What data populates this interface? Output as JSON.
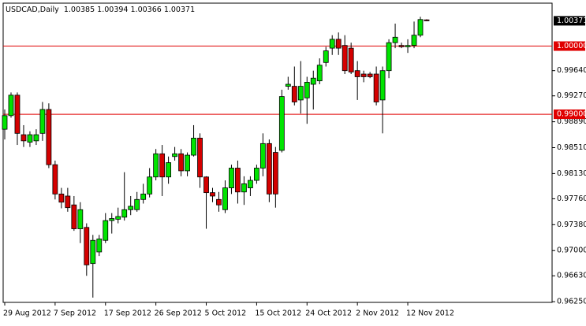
{
  "chart_data": {
    "type": "candlestick",
    "title": "USDCAD,Daily",
    "categories": [
      "29 Aug 2012",
      null,
      null,
      null,
      null,
      null,
      null,
      null,
      "7 Sep 2012",
      null,
      null,
      null,
      null,
      null,
      null,
      null,
      "17 Sep 2012",
      null,
      null,
      null,
      null,
      null,
      null,
      null,
      "26 Sep 2012",
      null,
      null,
      null,
      null,
      null,
      null,
      null,
      "5 Oct 2012",
      null,
      null,
      null,
      null,
      null,
      null,
      null,
      "15 Oct 2012",
      null,
      null,
      null,
      null,
      null,
      null,
      null,
      "24 Oct 2012",
      null,
      null,
      null,
      null,
      null,
      null,
      null,
      "2 Nov 2012",
      null,
      null,
      null,
      null,
      null,
      null,
      null,
      "12 Nov 2012",
      null,
      null,
      null
    ],
    "open": [
      0.9878,
      0.9898,
      0.9928,
      0.987,
      0.9859,
      0.9861,
      0.9872,
      0.9907,
      0.9826,
      0.9783,
      0.978,
      0.9767,
      0.9732,
      0.9734,
      0.9681,
      0.9698,
      0.9715,
      0.9744,
      0.9746,
      0.9749,
      0.976,
      0.976,
      0.9775,
      0.9783,
      0.9808,
      0.9842,
      0.9808,
      0.9838,
      0.9842,
      0.9817,
      0.984,
      0.9865,
      0.9808,
      0.9785,
      0.9775,
      0.976,
      0.9792,
      0.9821,
      0.9786,
      0.9792,
      0.9803,
      0.9821,
      0.9857,
      0.9844,
      0.9847,
      0.9941,
      0.9941,
      0.9921,
      0.9924,
      0.9944,
      0.9949,
      0.9976,
      0.9997,
      1.001,
      1.0001,
      0.9997,
      0.9964,
      0.9959,
      0.9959,
      0.9959,
      0.9921,
      0.9964,
      1.0005,
      1.0001,
      0.9999,
      1.0001,
      1.0016,
      1.00385
    ],
    "high": [
      0.9907,
      0.9932,
      0.9932,
      0.9884,
      0.9875,
      0.9878,
      0.9918,
      0.9916,
      0.9832,
      0.9792,
      0.9792,
      0.978,
      0.9771,
      0.974,
      0.9723,
      0.9723,
      0.9755,
      0.9755,
      0.9763,
      0.9815,
      0.978,
      0.9786,
      0.9798,
      0.9821,
      0.9849,
      0.9855,
      0.9838,
      0.9852,
      0.9849,
      0.9844,
      0.9884,
      0.9872,
      0.9809,
      0.9792,
      0.9786,
      0.9803,
      0.9826,
      0.9832,
      0.9809,
      0.9809,
      0.9826,
      0.9872,
      0.9863,
      0.9852,
      0.9936,
      0.9955,
      0.997,
      0.9978,
      0.9955,
      0.9964,
      0.9982,
      0.9999,
      1.0016,
      1.002,
      1.0016,
      1.0005,
      0.9978,
      0.9964,
      0.9962,
      0.997,
      0.997,
      1.001,
      1.0033,
      1.0005,
      1.001,
      1.0036,
      1.0043,
      1.00394
    ],
    "low": [
      0.9863,
      0.9895,
      0.9855,
      0.9852,
      0.9852,
      0.9855,
      0.9861,
      0.9821,
      0.9775,
      0.9762,
      0.9757,
      0.9729,
      0.9711,
      0.9663,
      0.9631,
      0.9692,
      0.9711,
      0.9725,
      0.974,
      0.9744,
      0.9752,
      0.9757,
      0.9769,
      0.9778,
      0.9803,
      0.978,
      0.9798,
      0.9832,
      0.9809,
      0.9809,
      0.9838,
      0.9792,
      0.9732,
      0.9771,
      0.9757,
      0.9755,
      0.9783,
      0.9769,
      0.9767,
      0.978,
      0.9798,
      0.9809,
      0.9771,
      0.9763,
      0.9844,
      0.9936,
      0.9913,
      0.9901,
      0.9886,
      0.9907,
      0.9944,
      0.997,
      0.9987,
      0.9987,
      0.9959,
      0.9959,
      0.9921,
      0.9947,
      0.9953,
      0.9913,
      0.9872,
      0.9953,
      0.9997,
      0.9997,
      0.999,
      0.9997,
      1.0013,
      1.00366
    ],
    "close": [
      0.9898,
      0.9928,
      0.9872,
      0.9861,
      0.987,
      0.987,
      0.9907,
      0.9826,
      0.9783,
      0.9771,
      0.9763,
      0.9732,
      0.976,
      0.9679,
      0.9715,
      0.9717,
      0.9744,
      0.9747,
      0.975,
      0.976,
      0.9765,
      0.9775,
      0.9783,
      0.9808,
      0.9842,
      0.9808,
      0.9829,
      0.9842,
      0.9817,
      0.984,
      0.9865,
      0.9808,
      0.9785,
      0.978,
      0.9767,
      0.9792,
      0.9821,
      0.9786,
      0.9798,
      0.9803,
      0.9821,
      0.9857,
      0.9783,
      0.9783,
      0.9926,
      0.9944,
      0.9918,
      0.9941,
      0.9947,
      0.9953,
      0.9972,
      0.9993,
      1.001,
      0.9997,
      0.9964,
      0.9962,
      0.9955,
      0.9955,
      0.9955,
      0.9918,
      0.9964,
      1.0005,
      1.0013,
      0.9999,
      1.0001,
      1.0016,
      1.0039,
      1.00371
    ],
    "up_color": "#00e400",
    "down_color": "#d40000",
    "ylim": [
      0.9624,
      1.0063
    ],
    "yticks": [
      {
        "value": 0.9964,
        "label": "0.99640"
      },
      {
        "value": 0.9927,
        "label": "0.99270"
      },
      {
        "value": 0.9889,
        "label": "0.98890"
      },
      {
        "value": 0.9851,
        "label": "0.98510"
      },
      {
        "value": 0.9813,
        "label": "0.98130"
      },
      {
        "value": 0.9776,
        "label": "0.97760"
      },
      {
        "value": 0.9738,
        "label": "0.97380"
      },
      {
        "value": 0.97,
        "label": "0.97000"
      },
      {
        "value": 0.9663,
        "label": "0.96630"
      },
      {
        "value": 0.9625,
        "label": "0.96250"
      }
    ],
    "hlines": [
      {
        "value": 1.0,
        "label": "1.00000"
      },
      {
        "value": 0.99,
        "label": "0.99000"
      }
    ],
    "hline_color": "#e00000"
  }
}
